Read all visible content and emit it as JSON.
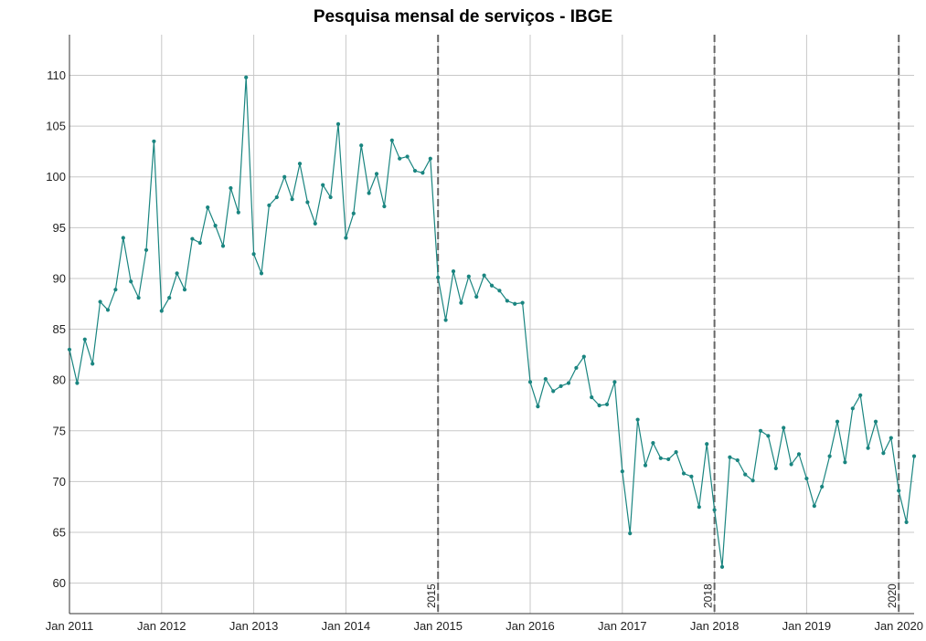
{
  "chart_data": {
    "type": "line",
    "title": "Pesquisa mensal de serviços - IBGE",
    "xlabel": "",
    "ylabel": "",
    "ylim": [
      57,
      114
    ],
    "xlim": [
      "2011-01",
      "2020-03"
    ],
    "grid": true,
    "line_color": "#1a8580",
    "x_ticks": [
      "Jan 2011",
      "Jan 2012",
      "Jan 2013",
      "Jan 2014",
      "Jan 2015",
      "Jan 2016",
      "Jan 2017",
      "Jan 2018",
      "Jan 2019",
      "Jan 2020"
    ],
    "y_ticks": [
      60,
      65,
      70,
      75,
      80,
      85,
      90,
      95,
      100,
      105,
      110
    ],
    "vertical_markers": [
      {
        "x": "2015-01",
        "label": "2015"
      },
      {
        "x": "2018-01",
        "label": "2018"
      },
      {
        "x": "2020-01",
        "label": "2020"
      }
    ],
    "series": [
      {
        "x": [
          "2011-01",
          "2011-02",
          "2011-03",
          "2011-04",
          "2011-05",
          "2011-06",
          "2011-07",
          "2011-08",
          "2011-09",
          "2011-10",
          "2011-11",
          "2011-12",
          "2012-01",
          "2012-02",
          "2012-03",
          "2012-04",
          "2012-05",
          "2012-06",
          "2012-07",
          "2012-08",
          "2012-09",
          "2012-10",
          "2012-11",
          "2012-12",
          "2013-01",
          "2013-02",
          "2013-03",
          "2013-04",
          "2013-05",
          "2013-06",
          "2013-07",
          "2013-08",
          "2013-09",
          "2013-10",
          "2013-11",
          "2013-12",
          "2014-01",
          "2014-02",
          "2014-03",
          "2014-04",
          "2014-05",
          "2014-06",
          "2014-07",
          "2014-08",
          "2014-09",
          "2014-10",
          "2014-11",
          "2014-12",
          "2015-01",
          "2015-02",
          "2015-03",
          "2015-04",
          "2015-05",
          "2015-06",
          "2015-07",
          "2015-08",
          "2015-09",
          "2015-10",
          "2015-11",
          "2015-12",
          "2016-01",
          "2016-02",
          "2016-03",
          "2016-04",
          "2016-05",
          "2016-06",
          "2016-07",
          "2016-08",
          "2016-09",
          "2016-10",
          "2016-11",
          "2016-12",
          "2017-01",
          "2017-02",
          "2017-03",
          "2017-04",
          "2017-05",
          "2017-06",
          "2017-07",
          "2017-08",
          "2017-09",
          "2017-10",
          "2017-11",
          "2017-12",
          "2018-01",
          "2018-02",
          "2018-03",
          "2018-04",
          "2018-05",
          "2018-06",
          "2018-07",
          "2018-08",
          "2018-09",
          "2018-10",
          "2018-11",
          "2018-12",
          "2019-01",
          "2019-02",
          "2019-03",
          "2019-04",
          "2019-05",
          "2019-06",
          "2019-07",
          "2019-08",
          "2019-09",
          "2019-10",
          "2019-11",
          "2019-12",
          "2020-01",
          "2020-02",
          "2020-03"
        ],
        "values": [
          83.0,
          79.7,
          84.0,
          81.6,
          87.7,
          86.9,
          88.9,
          94.0,
          89.7,
          88.1,
          92.8,
          103.5,
          86.8,
          88.1,
          90.5,
          88.9,
          93.9,
          93.5,
          97.0,
          95.2,
          93.2,
          98.9,
          96.5,
          109.8,
          92.4,
          90.5,
          97.2,
          98.0,
          100.0,
          97.8,
          101.3,
          97.5,
          95.4,
          99.2,
          98.0,
          105.2,
          94.0,
          96.4,
          103.1,
          98.4,
          100.3,
          97.1,
          103.6,
          101.8,
          102.0,
          100.6,
          100.4,
          101.8,
          90.1,
          85.9,
          90.7,
          87.6,
          90.2,
          88.2,
          90.3,
          89.3,
          88.8,
          87.8,
          87.5,
          87.6,
          79.8,
          77.4,
          80.1,
          78.9,
          79.4,
          79.7,
          81.2,
          82.3,
          78.3,
          77.5,
          77.6,
          79.8,
          71.0,
          64.9,
          76.1,
          71.6,
          73.8,
          72.3,
          72.2,
          72.9,
          70.8,
          70.5,
          67.5,
          73.7,
          67.2,
          61.6,
          72.4,
          72.1,
          70.7,
          70.1,
          75.0,
          74.5,
          71.3,
          75.3,
          71.7,
          72.7,
          70.3,
          67.6,
          69.5,
          72.5,
          75.9,
          71.9,
          77.2,
          78.5,
          73.3,
          75.9,
          72.8,
          74.3,
          69.1,
          66.0,
          72.5
        ]
      }
    ]
  }
}
